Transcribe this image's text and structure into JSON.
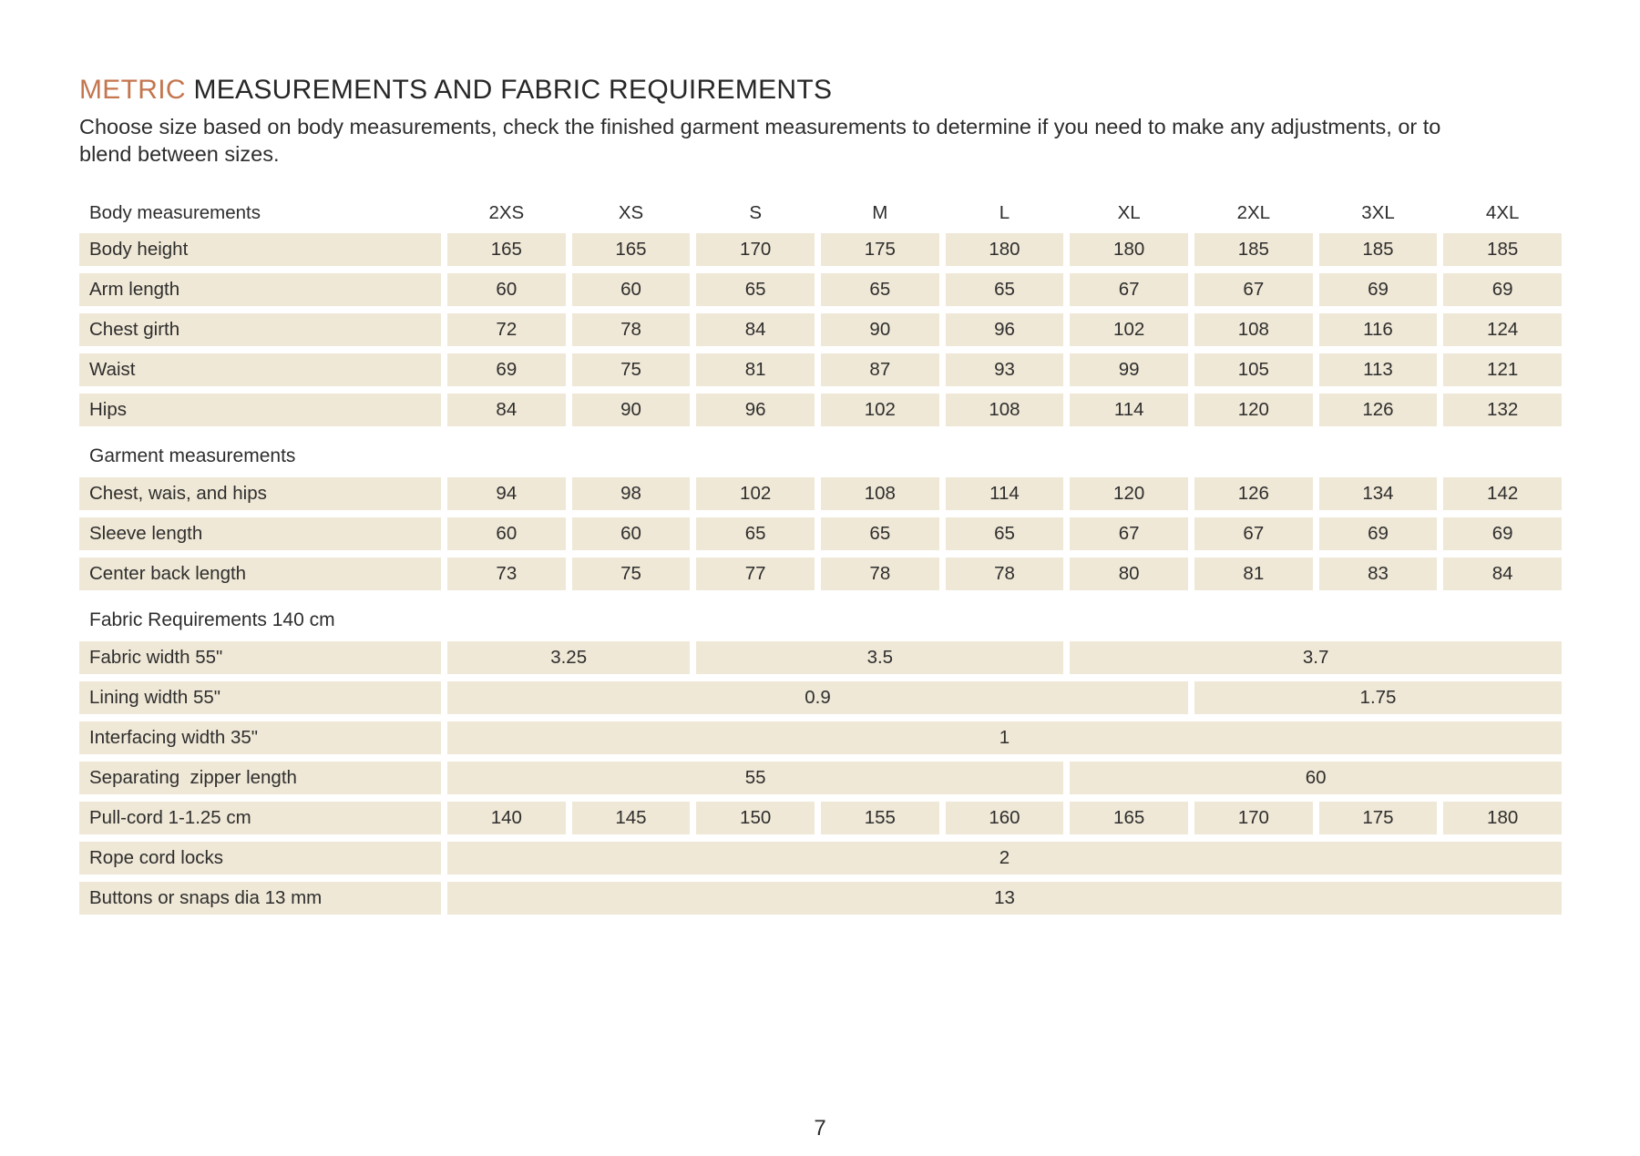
{
  "header": {
    "title_accent": "METRIC",
    "title_rest": "MEASUREMENTS AND FABRIC REQUIREMENTS",
    "subtitle": "Choose size based on body measurements, check the finished garment measurements to determine if you need to make any adjustments, or to blend between sizes."
  },
  "colors": {
    "accent": "#c4764e",
    "cell_bg": "#f0e8d6",
    "text": "#2d2d2d"
  },
  "table": {
    "corner_label": "Body measurements",
    "sizes": [
      "2XS",
      "XS",
      "S",
      "M",
      "L",
      "XL",
      "2XL",
      "3XL",
      "4XL"
    ],
    "sections": [
      {
        "title": "",
        "rows": [
          {
            "label": "Body height",
            "cells": [
              "165",
              "165",
              "170",
              "175",
              "180",
              "180",
              "185",
              "185",
              "185"
            ]
          },
          {
            "label": "Arm length",
            "cells": [
              "60",
              "60",
              "65",
              "65",
              "65",
              "67",
              "67",
              "69",
              "69"
            ]
          },
          {
            "label": "Chest girth",
            "cells": [
              "72",
              "78",
              "84",
              "90",
              "96",
              "102",
              "108",
              "116",
              "124"
            ]
          },
          {
            "label": "Waist",
            "cells": [
              "69",
              "75",
              "81",
              "87",
              "93",
              "99",
              "105",
              "113",
              "121"
            ]
          },
          {
            "label": "Hips",
            "cells": [
              "84",
              "90",
              "96",
              "102",
              "108",
              "114",
              "120",
              "126",
              "132"
            ]
          }
        ]
      },
      {
        "title": "Garment measurements",
        "rows": [
          {
            "label": "Chest, wais, and hips",
            "cells": [
              "94",
              "98",
              "102",
              "108",
              "114",
              "120",
              "126",
              "134",
              "142"
            ]
          },
          {
            "label": "Sleeve length",
            "cells": [
              "60",
              "60",
              "65",
              "65",
              "65",
              "67",
              "67",
              "69",
              "69"
            ]
          },
          {
            "label": "Center back length",
            "cells": [
              "73",
              "75",
              "77",
              "78",
              "78",
              "80",
              "81",
              "83",
              "84"
            ]
          }
        ]
      },
      {
        "title": "Fabric Requirements 140 cm",
        "rows": [
          {
            "label": "Fabric width 55\"",
            "cells": [
              {
                "v": "3.25",
                "span": 2
              },
              {
                "v": "3.5",
                "span": 3
              },
              {
                "v": "3.7",
                "span": 4
              }
            ]
          },
          {
            "label": "Lining width 55\"",
            "cells": [
              {
                "v": "0.9",
                "span": 6
              },
              {
                "v": "1.75",
                "span": 3
              }
            ]
          },
          {
            "label": "Interfacing width 35\"",
            "cells": [
              {
                "v": "1",
                "span": 9
              }
            ]
          },
          {
            "label": "Separating  zipper length",
            "cells": [
              {
                "v": "55",
                "span": 5
              },
              {
                "v": "60",
                "span": 4
              }
            ]
          },
          {
            "label": "Pull-cord 1-1.25 cm",
            "cells": [
              "140",
              "145",
              "150",
              "155",
              "160",
              "165",
              "170",
              "175",
              "180"
            ]
          },
          {
            "label": "Rope cord locks",
            "cells": [
              {
                "v": "2",
                "span": 9
              }
            ]
          },
          {
            "label": "Buttons or snaps dia 13 mm",
            "cells": [
              {
                "v": "13",
                "span": 9
              }
            ]
          }
        ]
      }
    ]
  },
  "footer": {
    "page_number": "7"
  }
}
